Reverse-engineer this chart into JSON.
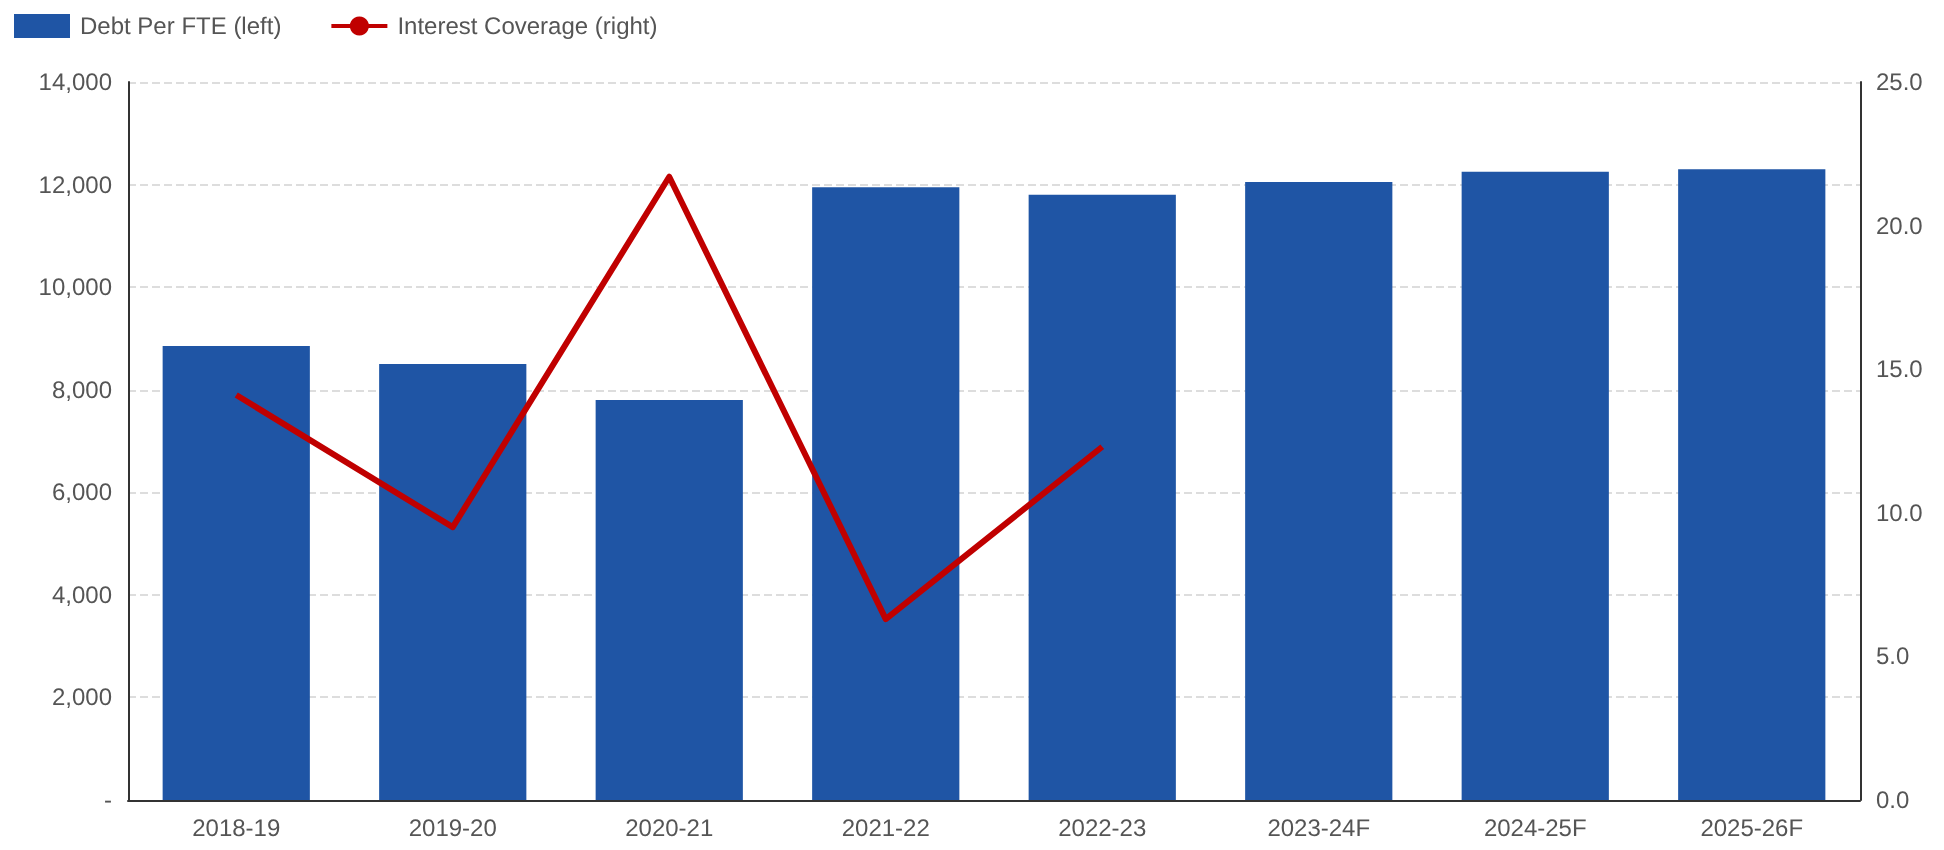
{
  "chart_data": {
    "type": "bar",
    "categories": [
      "2018-19",
      "2019-20",
      "2020-21",
      "2021-22",
      "2022-23",
      "2023-24F",
      "2024-25F",
      "2025-26F"
    ],
    "series": [
      {
        "name": "Debt Per FTE (left)",
        "color": "#1f55a5",
        "values": [
          8850,
          8500,
          7800,
          11950,
          11800,
          12050,
          12250,
          12300
        ]
      },
      {
        "name": "Interest Coverage (right)",
        "type": "line",
        "axis": "y2",
        "color": "#c00000",
        "values": [
          14.1,
          9.5,
          21.7,
          6.3,
          12.3,
          null,
          null,
          null
        ]
      }
    ],
    "ylim": [
      0,
      14000
    ],
    "yticks": [
      {
        "value": 0,
        "label": "-"
      },
      {
        "value": 2000,
        "label": "2,000"
      },
      {
        "value": 4000,
        "label": "4,000"
      },
      {
        "value": 6000,
        "label": "6,000"
      },
      {
        "value": 8000,
        "label": "8,000"
      },
      {
        "value": 10000,
        "label": "10,000"
      },
      {
        "value": 12000,
        "label": "12,000"
      },
      {
        "value": 14000,
        "label": "14,000"
      }
    ],
    "y2lim": [
      0,
      25
    ],
    "y2ticks": [
      {
        "value": 0,
        "label": "0.0"
      },
      {
        "value": 5,
        "label": "5.0"
      },
      {
        "value": 10,
        "label": "10.0"
      },
      {
        "value": 15,
        "label": "15.0"
      },
      {
        "value": 20,
        "label": "20.0"
      },
      {
        "value": 25,
        "label": "25.0"
      }
    ],
    "grid": "y",
    "legend": "top left",
    "marker": "none",
    "line_style": "solid"
  }
}
